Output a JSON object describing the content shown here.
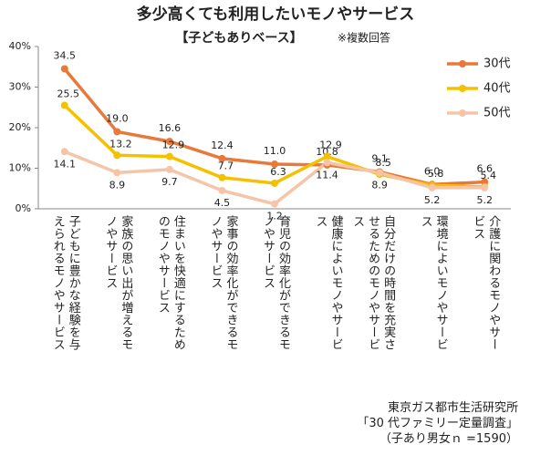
{
  "chart_data": {
    "type": "line",
    "title": "多少高くても利用したいモノやサービス",
    "subtitle": "【子どもありベース】",
    "note": "※複数回答",
    "categories": [
      "子どもに豊かな経験を与えられるモノやサービス",
      "家族の思い出が増えるモノやサービス",
      "住まいを快適にするためのモノやサービス",
      "家事の効率化ができるモノやサービス",
      "育児の効率化ができるモノやサービス",
      "健康によいモノやサービス",
      "自分だけの時間を充実させるためのモノやサービス",
      "環境によいモノやサービス",
      "介護に関わるモノやサービス"
    ],
    "series": [
      {
        "name": "30代",
        "color": "#e8793a",
        "values": [
          34.5,
          19,
          16.6,
          12.4,
          11,
          10.8,
          9.1,
          6,
          6.6
        ],
        "value_labels": [
          "34.5",
          "19.0",
          "16.6",
          "12.4",
          "11.0",
          "10.8",
          "9.1",
          "6.0",
          "6.6"
        ]
      },
      {
        "name": "40代",
        "color": "#f5c000",
        "values": [
          25.5,
          13.2,
          12.9,
          7.7,
          6.3,
          12.9,
          8.5,
          5.8,
          5.4
        ],
        "value_labels": [
          "25.5",
          "13.2",
          "12.9",
          "7.7",
          "6.3",
          "12.9",
          "8.5",
          "5.8",
          "5.4"
        ]
      },
      {
        "name": "50代",
        "color": "#f6c5a8",
        "values": [
          14.1,
          8.9,
          9.7,
          4.5,
          1.2,
          11.4,
          8.9,
          5.2,
          5.2
        ],
        "value_labels": [
          "14.1",
          "8.9",
          "9.7",
          "4.5",
          "1.2",
          "11.4",
          "8.9",
          "5.2",
          "5.2"
        ]
      }
    ],
    "ylim": [
      0,
      40
    ],
    "yticks": [
      {
        "value": 0,
        "label": "0%"
      },
      {
        "value": 10,
        "label": "10%"
      },
      {
        "value": 20,
        "label": "20%"
      },
      {
        "value": 30,
        "label": "30%"
      },
      {
        "value": 40,
        "label": "40%"
      }
    ],
    "grid": false,
    "legend": "top-right",
    "source": [
      "東京ガス都市生活研究所",
      "「30 代ファミリー定量調査」",
      "（子あり男女ｎ =1590）"
    ]
  }
}
